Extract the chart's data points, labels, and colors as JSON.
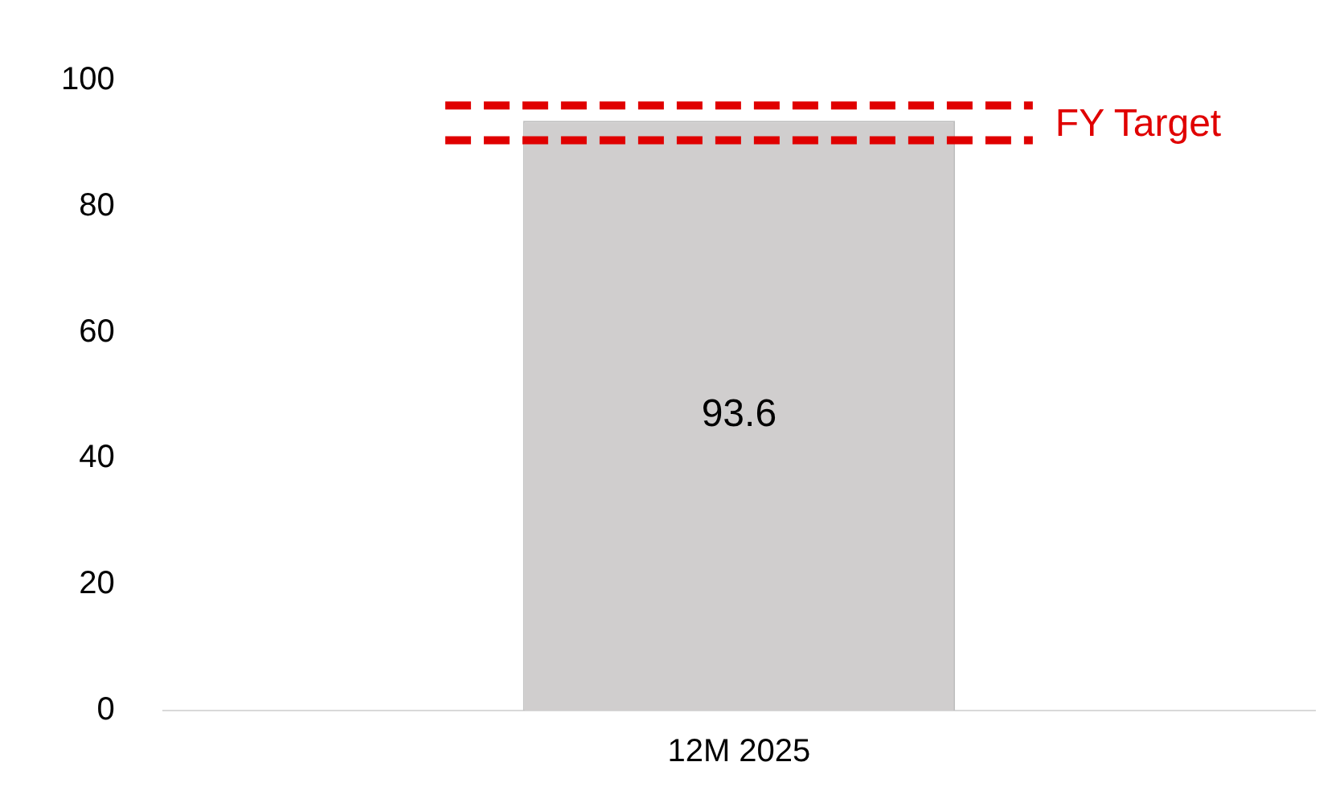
{
  "chart_data": {
    "type": "bar",
    "categories": [
      "12M 2025"
    ],
    "values": [
      93.6
    ],
    "color": "#d0cece",
    "ylim": [
      0,
      100
    ],
    "yticks": [
      0,
      20,
      40,
      60,
      80,
      100
    ],
    "grid": false,
    "legend": false,
    "data_labels": true,
    "ref_lines": [
      {
        "axis": "y",
        "value": 96,
        "label": "FY Target",
        "color": "#e00000",
        "line_style": "dashed"
      },
      {
        "axis": "y",
        "value": 90.5,
        "color": "#e00000",
        "line_style": "dashed"
      }
    ]
  }
}
